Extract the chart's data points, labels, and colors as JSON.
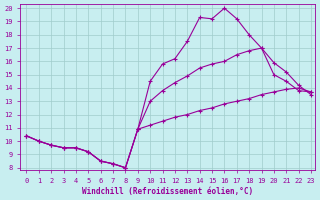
{
  "xlabel": "Windchill (Refroidissement éolien,°C)",
  "background_color": "#c8eef0",
  "grid_color": "#a0cccc",
  "line_color": "#990099",
  "xlim": [
    -0.5,
    23.3
  ],
  "ylim": [
    7.8,
    20.3
  ],
  "xticks": [
    0,
    1,
    2,
    3,
    4,
    5,
    6,
    7,
    8,
    9,
    10,
    11,
    12,
    13,
    14,
    15,
    16,
    17,
    18,
    19,
    20,
    21,
    22,
    23
  ],
  "yticks": [
    8,
    9,
    10,
    11,
    12,
    13,
    14,
    15,
    16,
    17,
    18,
    19,
    20
  ],
  "line1_x": [
    0,
    1,
    2,
    3,
    4,
    5,
    6,
    7,
    8,
    9,
    10,
    11,
    12,
    13,
    14,
    15,
    16,
    17,
    18,
    19,
    20,
    21,
    22,
    23
  ],
  "line1_y": [
    10.4,
    10.0,
    9.7,
    9.5,
    9.5,
    9.2,
    8.5,
    8.3,
    8.0,
    10.9,
    14.5,
    15.8,
    16.2,
    17.5,
    19.3,
    19.2,
    20.0,
    19.2,
    18.0,
    17.0,
    15.0,
    14.5,
    13.8,
    13.7
  ],
  "line2_x": [
    0,
    1,
    2,
    3,
    4,
    5,
    6,
    7,
    8,
    9,
    10,
    11,
    12,
    13,
    14,
    15,
    16,
    17,
    18,
    19,
    20,
    21,
    22,
    23
  ],
  "line2_y": [
    10.4,
    10.0,
    9.7,
    9.5,
    9.5,
    9.2,
    8.5,
    8.3,
    8.0,
    10.9,
    13.0,
    13.8,
    14.4,
    14.9,
    15.5,
    15.8,
    16.0,
    16.5,
    16.8,
    17.0,
    15.9,
    15.2,
    14.2,
    13.5
  ],
  "line3_x": [
    0,
    1,
    2,
    3,
    4,
    5,
    6,
    7,
    8,
    9,
    10,
    11,
    12,
    13,
    14,
    15,
    16,
    17,
    18,
    19,
    20,
    21,
    22,
    23
  ],
  "line3_y": [
    10.4,
    10.0,
    9.7,
    9.5,
    9.5,
    9.2,
    8.5,
    8.3,
    8.0,
    10.9,
    11.2,
    11.5,
    11.8,
    12.0,
    12.3,
    12.5,
    12.8,
    13.0,
    13.2,
    13.5,
    13.7,
    13.9,
    14.0,
    13.7
  ],
  "marker": "+",
  "markersize": 3,
  "markeredgewidth": 0.8,
  "linewidth": 0.8,
  "tick_fontsize": 5,
  "label_fontsize": 5.5
}
